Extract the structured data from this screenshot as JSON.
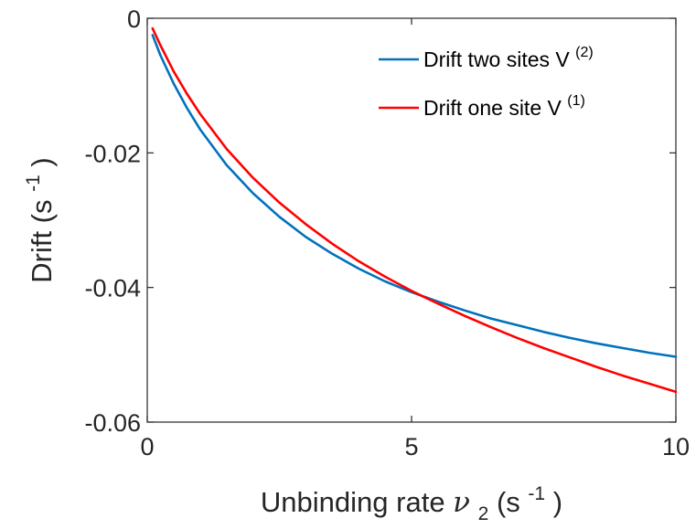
{
  "chart_data": {
    "type": "line",
    "xlabel": {
      "text": "Unbinding rate ",
      "symbol": "ν",
      "subscript": "2",
      "unit_open": " (s",
      "unit_sup": "-1",
      "unit_close": ")"
    },
    "ylabel": {
      "text": "Drift (s",
      "unit_sup": "-1",
      "unit_close": ")"
    },
    "xlim": [
      0,
      10
    ],
    "ylim": [
      -0.06,
      0
    ],
    "x_ticks": [
      0,
      5,
      10
    ],
    "x_tick_labels": [
      "0",
      "5",
      "10"
    ],
    "y_ticks": [
      0,
      -0.02,
      -0.04,
      -0.06
    ],
    "y_tick_labels": [
      "0",
      "-0.02",
      "-0.04",
      "-0.06"
    ],
    "grid": false,
    "legend_position": "top-right",
    "series": [
      {
        "name": "Drift two sites V",
        "name_sup": "(2)",
        "color": "#0072BD",
        "x": [
          0.1,
          0.25,
          0.5,
          0.75,
          1.0,
          1.5,
          2.0,
          2.5,
          3.0,
          3.5,
          4.0,
          4.5,
          5.0,
          5.5,
          6.0,
          6.5,
          7.0,
          7.5,
          8.0,
          8.5,
          9.0,
          9.5,
          10.0
        ],
        "y": [
          -0.0025,
          -0.0055,
          -0.0097,
          -0.0133,
          -0.0165,
          -0.0218,
          -0.026,
          -0.0295,
          -0.0325,
          -0.035,
          -0.0372,
          -0.0391,
          -0.0407,
          -0.0421,
          -0.0434,
          -0.0446,
          -0.0456,
          -0.0466,
          -0.0475,
          -0.0483,
          -0.049,
          -0.0497,
          -0.0503
        ]
      },
      {
        "name": "Drift one site V",
        "name_sup": "(1)",
        "color": "#FF0000",
        "x": [
          0.1,
          0.25,
          0.5,
          0.75,
          1.0,
          1.5,
          2.0,
          2.5,
          3.0,
          3.5,
          4.0,
          4.5,
          5.0,
          5.5,
          6.0,
          6.5,
          7.0,
          7.5,
          8.0,
          8.5,
          9.0,
          9.5,
          10.0
        ],
        "y": [
          -0.0015,
          -0.004,
          -0.0079,
          -0.0112,
          -0.0142,
          -0.0194,
          -0.0237,
          -0.0274,
          -0.0306,
          -0.0335,
          -0.0361,
          -0.0384,
          -0.0405,
          -0.0424,
          -0.0442,
          -0.0459,
          -0.0475,
          -0.049,
          -0.0504,
          -0.0518,
          -0.0531,
          -0.0543,
          -0.0555
        ]
      }
    ]
  }
}
